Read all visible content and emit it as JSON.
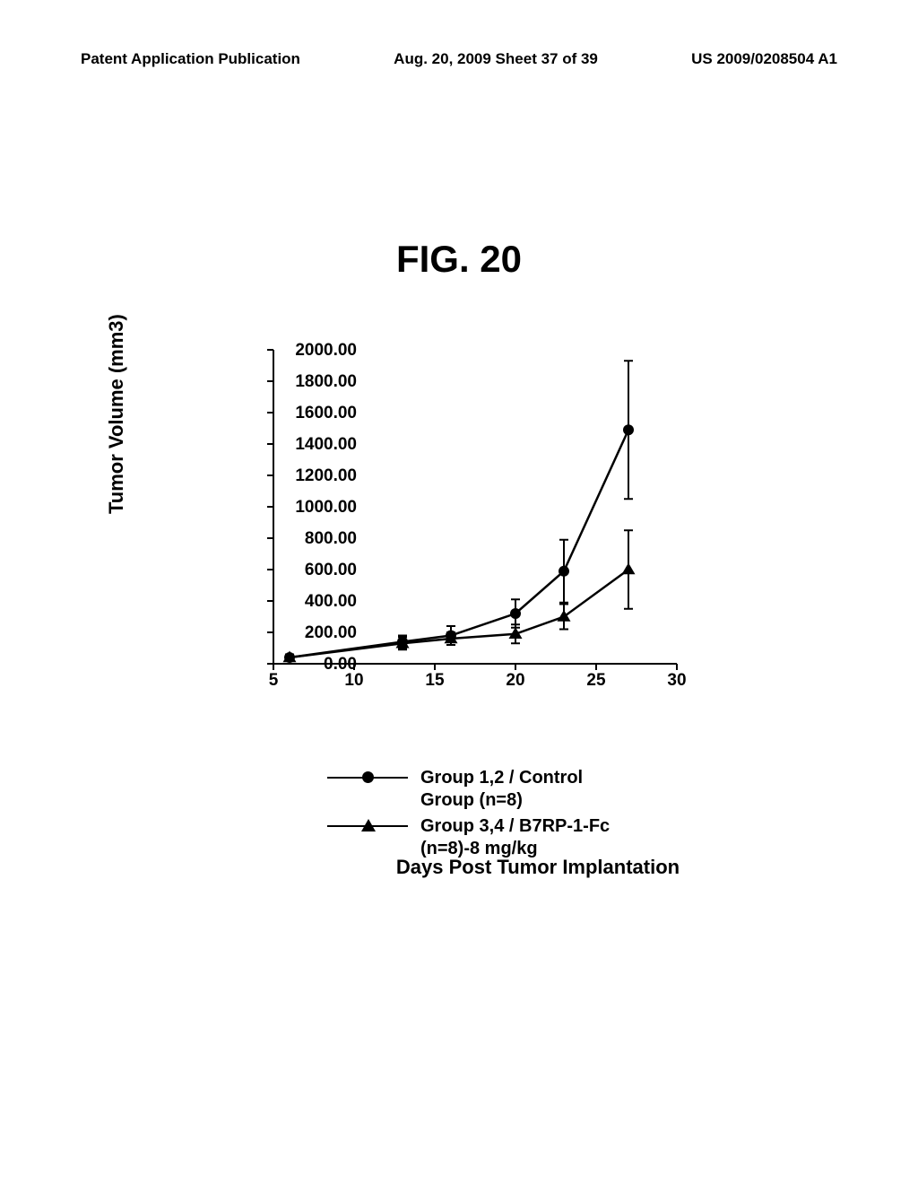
{
  "header": {
    "left": "Patent Application Publication",
    "center": "Aug. 20, 2009  Sheet 37 of 39",
    "right": "US 2009/0208504 A1"
  },
  "figure_label": "FIG. 20",
  "chart": {
    "type": "line",
    "y_axis_label": "Tumor Volume (mm3)",
    "x_axis_label": "Days Post Tumor Implantation",
    "xlim": [
      5,
      30
    ],
    "ylim": [
      0,
      2000
    ],
    "x_ticks": [
      5,
      10,
      15,
      20,
      25,
      30
    ],
    "y_ticks": [
      "0.00",
      "200.00",
      "400.00",
      "600.00",
      "800.00",
      "1000.00",
      "1200.00",
      "1400.00",
      "1600.00",
      "1800.00",
      "2000.00"
    ],
    "background_color": "#ffffff",
    "axis_color": "#000000",
    "line_color": "#000000",
    "line_width": 2.5,
    "tick_fontsize": 19,
    "label_fontsize": 22,
    "series": [
      {
        "name": "control",
        "marker": "circle",
        "marker_size": 12,
        "color": "#000000",
        "x": [
          6,
          13,
          16,
          20,
          23,
          27
        ],
        "y": [
          40,
          140,
          180,
          320,
          590,
          1490
        ],
        "error": [
          20,
          40,
          60,
          90,
          200,
          440
        ]
      },
      {
        "name": "b7rp",
        "marker": "triangle",
        "marker_size": 13,
        "color": "#000000",
        "x": [
          6,
          13,
          16,
          20,
          23,
          27
        ],
        "y": [
          40,
          130,
          160,
          190,
          300,
          600
        ],
        "error": [
          20,
          40,
          40,
          60,
          80,
          250
        ]
      }
    ]
  },
  "legend": {
    "items": [
      {
        "marker": "circle",
        "label_line1": "Group 1,2 / Control",
        "label_line2": "Group (n=8)"
      },
      {
        "marker": "triangle",
        "label_line1": "Group 3,4 / B7RP-1-Fc",
        "label_line2": "(n=8)-8 mg/kg"
      }
    ]
  }
}
